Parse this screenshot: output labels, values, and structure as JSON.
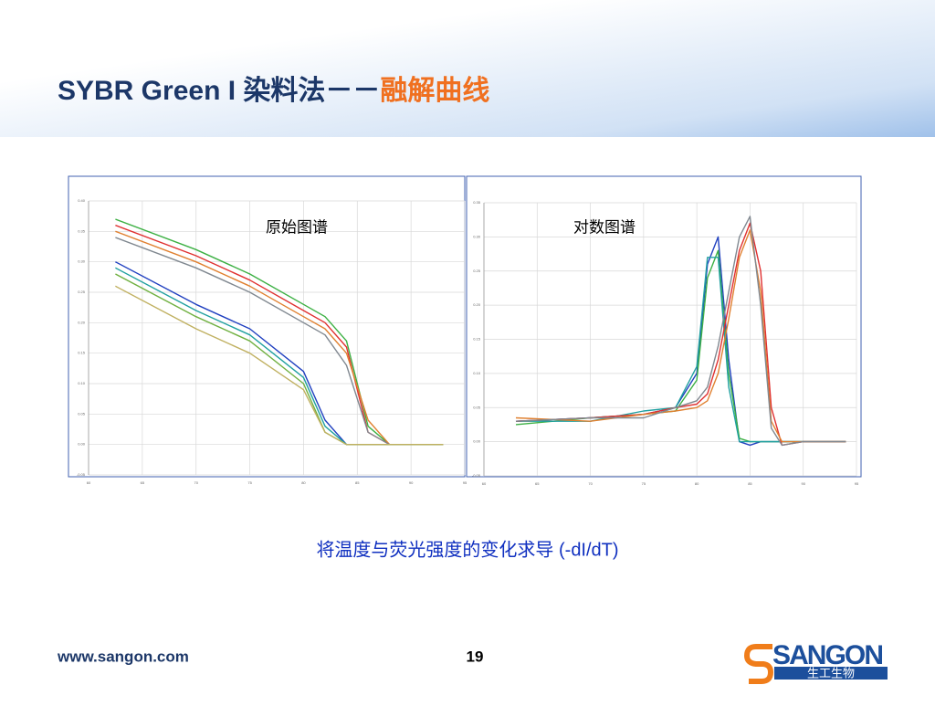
{
  "header": {
    "title": "SYBR Green I 染料法－－",
    "title_highlight": "融解曲线"
  },
  "chart_data": [
    {
      "type": "line",
      "title": "原始图谱",
      "x": [
        62.5,
        70,
        75,
        80,
        82,
        84,
        86,
        88,
        90,
        93
      ],
      "xlim": [
        60,
        95
      ],
      "xticks": [
        60,
        65,
        70,
        75,
        80,
        85,
        90,
        95
      ],
      "ylim": [
        -0.05,
        0.4
      ],
      "yticks": [
        {
          "value": -0.05,
          "label": "-0.05"
        },
        {
          "value": 0,
          "label": "0.00"
        },
        {
          "value": 0.05,
          "label": "0.05"
        },
        {
          "value": 0.1,
          "label": "0.10"
        },
        {
          "value": 0.15,
          "label": "0.15"
        },
        {
          "value": 0.2,
          "label": "0.20"
        },
        {
          "value": 0.25,
          "label": "0.25"
        },
        {
          "value": 0.3,
          "label": "0.30"
        },
        {
          "value": 0.35,
          "label": "0.35"
        },
        {
          "value": 0.4,
          "label": "0.40"
        }
      ],
      "grid": true,
      "series": [
        {
          "color": "#3cb043",
          "values": [
            0.37,
            0.32,
            0.28,
            0.23,
            0.21,
            0.17,
            0.03,
            0,
            0,
            0
          ]
        },
        {
          "color": "#e03030",
          "values": [
            0.36,
            0.31,
            0.27,
            0.22,
            0.2,
            0.16,
            0.02,
            0,
            0,
            0
          ]
        },
        {
          "color": "#e08030",
          "values": [
            0.35,
            0.3,
            0.26,
            0.21,
            0.19,
            0.15,
            0.04,
            0,
            0,
            0
          ]
        },
        {
          "color": "#808890",
          "values": [
            0.34,
            0.29,
            0.25,
            0.2,
            0.18,
            0.13,
            0.02,
            0,
            0,
            0
          ]
        },
        {
          "color": "#2040c0",
          "values": [
            0.3,
            0.23,
            0.19,
            0.12,
            0.04,
            0,
            0,
            0,
            0,
            0
          ]
        },
        {
          "color": "#20a0a0",
          "values": [
            0.29,
            0.22,
            0.18,
            0.11,
            0.03,
            0,
            0,
            0,
            0,
            0
          ]
        },
        {
          "color": "#70b040",
          "values": [
            0.28,
            0.21,
            0.17,
            0.1,
            0.02,
            0,
            0,
            0,
            0,
            0
          ]
        },
        {
          "color": "#c0b060",
          "values": [
            0.26,
            0.19,
            0.15,
            0.09,
            0.02,
            0,
            0,
            0,
            0,
            0
          ]
        }
      ]
    },
    {
      "type": "line",
      "title": "对数图谱",
      "x": [
        63,
        70,
        75,
        78,
        80,
        81,
        82,
        83,
        84,
        85,
        86,
        87,
        88,
        90,
        94
      ],
      "xlim": [
        60,
        95
      ],
      "xticks": [
        60,
        65,
        70,
        75,
        80,
        85,
        90,
        95
      ],
      "ylim": [
        -0.05,
        0.35
      ],
      "yticks": [
        {
          "value": -0.05,
          "label": "-0.05"
        },
        {
          "value": 0,
          "label": "0.00"
        },
        {
          "value": 0.05,
          "label": "0.05"
        },
        {
          "value": 0.1,
          "label": "0.10"
        },
        {
          "value": 0.15,
          "label": "0.15"
        },
        {
          "value": 0.2,
          "label": "0.20"
        },
        {
          "value": 0.25,
          "label": "0.25"
        },
        {
          "value": 0.3,
          "label": "0.30"
        },
        {
          "value": 0.35,
          "label": "0.35"
        }
      ],
      "grid": true,
      "series": [
        {
          "color": "#2040c0",
          "values": [
            0.03,
            0.035,
            0.04,
            0.05,
            0.1,
            0.26,
            0.3,
            0.12,
            0,
            -0.005,
            0,
            0,
            0,
            0,
            0
          ]
        },
        {
          "color": "#3cb043",
          "values": [
            0.025,
            0.035,
            0.04,
            0.045,
            0.09,
            0.24,
            0.28,
            0.1,
            0.005,
            0,
            0,
            0,
            0,
            0,
            0
          ]
        },
        {
          "color": "#20a0a0",
          "values": [
            0.03,
            0.03,
            0.045,
            0.05,
            0.11,
            0.27,
            0.27,
            0.08,
            0,
            0,
            0,
            0,
            0,
            0,
            0
          ]
        },
        {
          "color": "#e03030",
          "values": [
            0.03,
            0.035,
            0.04,
            0.05,
            0.055,
            0.07,
            0.12,
            0.2,
            0.28,
            0.32,
            0.25,
            0.05,
            -0.005,
            0,
            0
          ]
        },
        {
          "color": "#e08030",
          "values": [
            0.035,
            0.03,
            0.04,
            0.045,
            0.05,
            0.06,
            0.1,
            0.18,
            0.27,
            0.31,
            0.22,
            0.03,
            0,
            0,
            0
          ]
        },
        {
          "color": "#808890",
          "values": [
            0.03,
            0.035,
            0.035,
            0.05,
            0.06,
            0.08,
            0.14,
            0.22,
            0.3,
            0.33,
            0.2,
            0.02,
            -0.005,
            0,
            0
          ]
        }
      ]
    }
  ],
  "caption": "将温度与荧光强度的变化求导 (-dI/dT)",
  "footer": {
    "website": "www.sangon.com",
    "page": "19"
  },
  "logo": {
    "name": "SANGON",
    "subtitle": "生工生物"
  }
}
